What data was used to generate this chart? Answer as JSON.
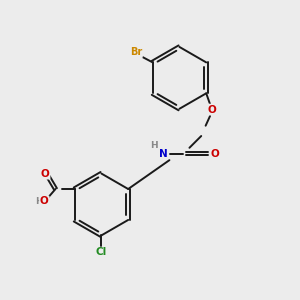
{
  "bg_color": "#ececec",
  "bond_color": "#1a1a1a",
  "atom_colors": {
    "Br": "#cc8800",
    "O": "#cc0000",
    "N": "#0000cc",
    "Cl": "#228B22",
    "H": "#888888",
    "C": "#1a1a1a"
  }
}
